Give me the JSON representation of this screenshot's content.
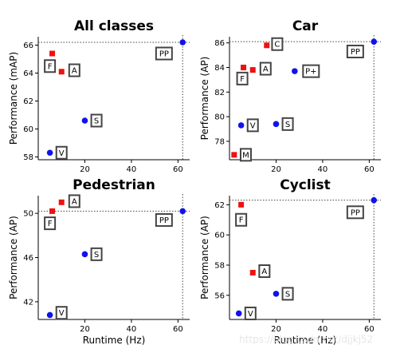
{
  "watermark": "https://blog.csdn.net/djjkj52",
  "chart_data": [
    {
      "type": "scatter",
      "title": "All classes",
      "xlabel": "",
      "ylabel": "Performance (mAP)",
      "xlim": [
        0,
        65
      ],
      "ylim": [
        57.8,
        66.6
      ],
      "xticks": [
        20,
        40,
        60
      ],
      "yticks": [
        58,
        60,
        62,
        64,
        66
      ],
      "best_line": {
        "x": 62,
        "y": 66.2
      },
      "points": [
        {
          "label": "F",
          "x": 6,
          "y": 65.4,
          "color": "#ee1111",
          "marker": "square",
          "box_dx": -1,
          "box_dy": -0.9
        },
        {
          "label": "A",
          "x": 10,
          "y": 64.1,
          "color": "#ee1111",
          "marker": "square",
          "box_dx": 5.5,
          "box_dy": 0.1
        },
        {
          "label": "S",
          "x": 20,
          "y": 60.6,
          "color": "#1111ee",
          "marker": "circle",
          "box_dx": 5,
          "box_dy": 0
        },
        {
          "label": "V",
          "x": 5,
          "y": 58.3,
          "color": "#1111ee",
          "marker": "circle",
          "box_dx": 5,
          "box_dy": 0
        },
        {
          "label": "PP",
          "x": 62,
          "y": 66.2,
          "color": "#1111ee",
          "marker": "circle",
          "box_dx": -8,
          "box_dy": -0.8
        }
      ]
    },
    {
      "type": "scatter",
      "title": "Car",
      "xlabel": "",
      "ylabel": "Performance (AP)",
      "xlim": [
        0,
        65
      ],
      "ylim": [
        76.5,
        86.5
      ],
      "xticks": [
        20,
        40,
        60
      ],
      "yticks": [
        78,
        80,
        82,
        84,
        86
      ],
      "best_line": {
        "x": 62,
        "y": 86.1
      },
      "points": [
        {
          "label": "C",
          "x": 16,
          "y": 85.8,
          "color": "#ee1111",
          "marker": "square",
          "box_dx": 4.5,
          "box_dy": 0.1
        },
        {
          "label": "F",
          "x": 6,
          "y": 84.0,
          "color": "#ee1111",
          "marker": "square",
          "box_dx": -0.5,
          "box_dy": -0.9
        },
        {
          "label": "A",
          "x": 10,
          "y": 83.8,
          "color": "#ee1111",
          "marker": "square",
          "box_dx": 5.5,
          "box_dy": 0.1
        },
        {
          "label": "P+",
          "x": 28,
          "y": 83.7,
          "color": "#1111ee",
          "marker": "circle",
          "box_dx": 7,
          "box_dy": 0
        },
        {
          "label": "S",
          "x": 20,
          "y": 79.4,
          "color": "#1111ee",
          "marker": "circle",
          "box_dx": 5,
          "box_dy": 0
        },
        {
          "label": "V",
          "x": 5,
          "y": 79.3,
          "color": "#1111ee",
          "marker": "circle",
          "box_dx": 5,
          "box_dy": 0
        },
        {
          "label": "M",
          "x": 2,
          "y": 76.9,
          "color": "#ee1111",
          "marker": "square",
          "box_dx": 5,
          "box_dy": 0
        },
        {
          "label": "PP",
          "x": 62,
          "y": 86.1,
          "color": "#1111ee",
          "marker": "circle",
          "box_dx": -8,
          "box_dy": -0.8
        }
      ]
    },
    {
      "type": "scatter",
      "title": "Pedestrian",
      "xlabel": "Runtime (Hz)",
      "ylabel": "Performance (AP)",
      "xlim": [
        0,
        65
      ],
      "ylim": [
        40.4,
        51.6
      ],
      "xticks": [
        20,
        40,
        60
      ],
      "yticks": [
        42,
        46,
        50
      ],
      "best_line": {
        "x": 62,
        "y": 50.2
      },
      "points": [
        {
          "label": "A",
          "x": 10,
          "y": 51.0,
          "color": "#ee1111",
          "marker": "square",
          "box_dx": 5.5,
          "box_dy": 0.1
        },
        {
          "label": "F",
          "x": 6,
          "y": 50.2,
          "color": "#ee1111",
          "marker": "square",
          "box_dx": -1,
          "box_dy": -1.1
        },
        {
          "label": "S",
          "x": 20,
          "y": 46.3,
          "color": "#1111ee",
          "marker": "circle",
          "box_dx": 5,
          "box_dy": 0
        },
        {
          "label": "V",
          "x": 5,
          "y": 40.8,
          "color": "#1111ee",
          "marker": "circle",
          "box_dx": 5,
          "box_dy": 0.2
        },
        {
          "label": "PP",
          "x": 62,
          "y": 50.2,
          "color": "#1111ee",
          "marker": "circle",
          "box_dx": -8,
          "box_dy": -0.8
        }
      ]
    },
    {
      "type": "scatter",
      "title": "Cyclist",
      "xlabel": "Runtime (Hz)",
      "ylabel": "Performance (AP)",
      "xlim": [
        0,
        65
      ],
      "ylim": [
        54.4,
        62.6
      ],
      "xticks": [
        20,
        40,
        60
      ],
      "yticks": [
        56,
        58,
        60,
        62
      ],
      "best_line": {
        "x": 62,
        "y": 62.3
      },
      "points": [
        {
          "label": "F",
          "x": 5,
          "y": 62.0,
          "color": "#ee1111",
          "marker": "square",
          "box_dx": 0,
          "box_dy": -1.0
        },
        {
          "label": "A",
          "x": 10,
          "y": 57.5,
          "color": "#ee1111",
          "marker": "square",
          "box_dx": 5,
          "box_dy": 0.1
        },
        {
          "label": "S",
          "x": 20,
          "y": 56.1,
          "color": "#1111ee",
          "marker": "circle",
          "box_dx": 5,
          "box_dy": 0
        },
        {
          "label": "V",
          "x": 4,
          "y": 54.8,
          "color": "#1111ee",
          "marker": "circle",
          "box_dx": 5,
          "box_dy": 0
        },
        {
          "label": "PP",
          "x": 62,
          "y": 62.3,
          "color": "#1111ee",
          "marker": "circle",
          "box_dx": -8,
          "box_dy": -0.8
        }
      ]
    }
  ]
}
